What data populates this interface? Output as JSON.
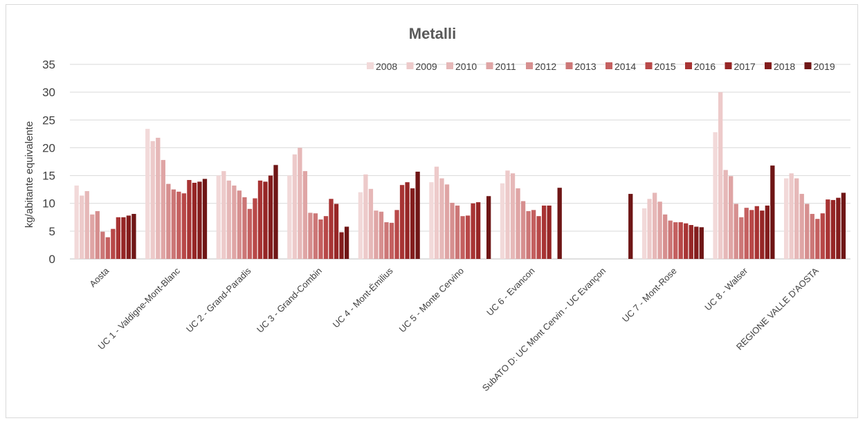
{
  "chart_data": {
    "type": "bar",
    "title": "Metalli",
    "xlabel": "",
    "ylabel": "kg/abitante equivalente",
    "ylim": [
      0,
      35
    ],
    "yticks": [
      0,
      5,
      10,
      15,
      20,
      25,
      30,
      35
    ],
    "grid": true,
    "legend_position": "top-right",
    "categories": [
      "Aosta",
      "UC 1 - Valdigne-Mont-Blanc",
      "UC 2 - Grand-Paradis",
      "UC 3 - Grand-Combin",
      "UC 4 - Mont-Émilius",
      "UC 5 - Monte Cervino",
      "UC 6 - Evancon",
      "SubATO D: UC Mont Cervin - UC Evançon",
      "UC 7 - Mont-Rose",
      "UC 8 - Walser",
      "REGIONE VALLE D'AOSTA"
    ],
    "series": [
      {
        "name": "2008",
        "color": "#f2d9d9",
        "values": [
          13.2,
          23.4,
          15.0,
          15.0,
          12.0,
          13.8,
          13.6,
          null,
          9.1,
          22.8,
          14.5
        ]
      },
      {
        "name": "2009",
        "color": "#edcaca",
        "values": [
          11.4,
          21.2,
          15.8,
          18.8,
          15.2,
          16.6,
          15.9,
          null,
          10.8,
          30.0,
          15.4
        ]
      },
      {
        "name": "2010",
        "color": "#e6b8b8",
        "values": [
          12.2,
          21.8,
          14.1,
          20.0,
          12.6,
          14.5,
          15.4,
          null,
          11.9,
          16.0,
          14.5
        ]
      },
      {
        "name": "2011",
        "color": "#dfa5a5",
        "values": [
          8.0,
          17.8,
          13.2,
          15.8,
          8.7,
          13.4,
          12.7,
          null,
          10.3,
          14.9,
          11.7
        ]
      },
      {
        "name": "2012",
        "color": "#d68f8f",
        "values": [
          8.6,
          13.5,
          12.3,
          8.3,
          8.5,
          10.1,
          10.4,
          null,
          8.0,
          9.9,
          9.9
        ]
      },
      {
        "name": "2013",
        "color": "#cc7777",
        "values": [
          4.9,
          12.5,
          11.1,
          8.2,
          6.6,
          9.6,
          8.6,
          null,
          6.9,
          7.5,
          8.1
        ]
      },
      {
        "name": "2014",
        "color": "#c46060",
        "values": [
          3.9,
          12.1,
          9.0,
          7.1,
          6.5,
          7.7,
          8.8,
          null,
          6.6,
          9.2,
          7.2
        ]
      },
      {
        "name": "2015",
        "color": "#b84848",
        "values": [
          5.4,
          11.8,
          10.9,
          7.7,
          8.8,
          7.8,
          7.7,
          null,
          6.6,
          8.8,
          8.2
        ]
      },
      {
        "name": "2016",
        "color": "#a83434",
        "values": [
          7.5,
          14.2,
          14.1,
          10.8,
          13.3,
          10.0,
          9.6,
          null,
          6.4,
          9.5,
          10.7
        ]
      },
      {
        "name": "2017",
        "color": "#962626",
        "values": [
          7.5,
          13.7,
          13.9,
          9.9,
          13.8,
          10.2,
          9.6,
          null,
          6.1,
          8.7,
          10.6
        ]
      },
      {
        "name": "2018",
        "color": "#831d1d",
        "values": [
          7.8,
          13.9,
          15.0,
          4.8,
          12.7,
          null,
          null,
          null,
          5.8,
          9.6,
          11.0
        ]
      },
      {
        "name": "2019",
        "color": "#6f1616",
        "values": [
          8.1,
          14.4,
          16.9,
          5.8,
          15.7,
          11.3,
          12.8,
          11.7,
          5.7,
          16.8,
          11.9
        ]
      }
    ]
  }
}
